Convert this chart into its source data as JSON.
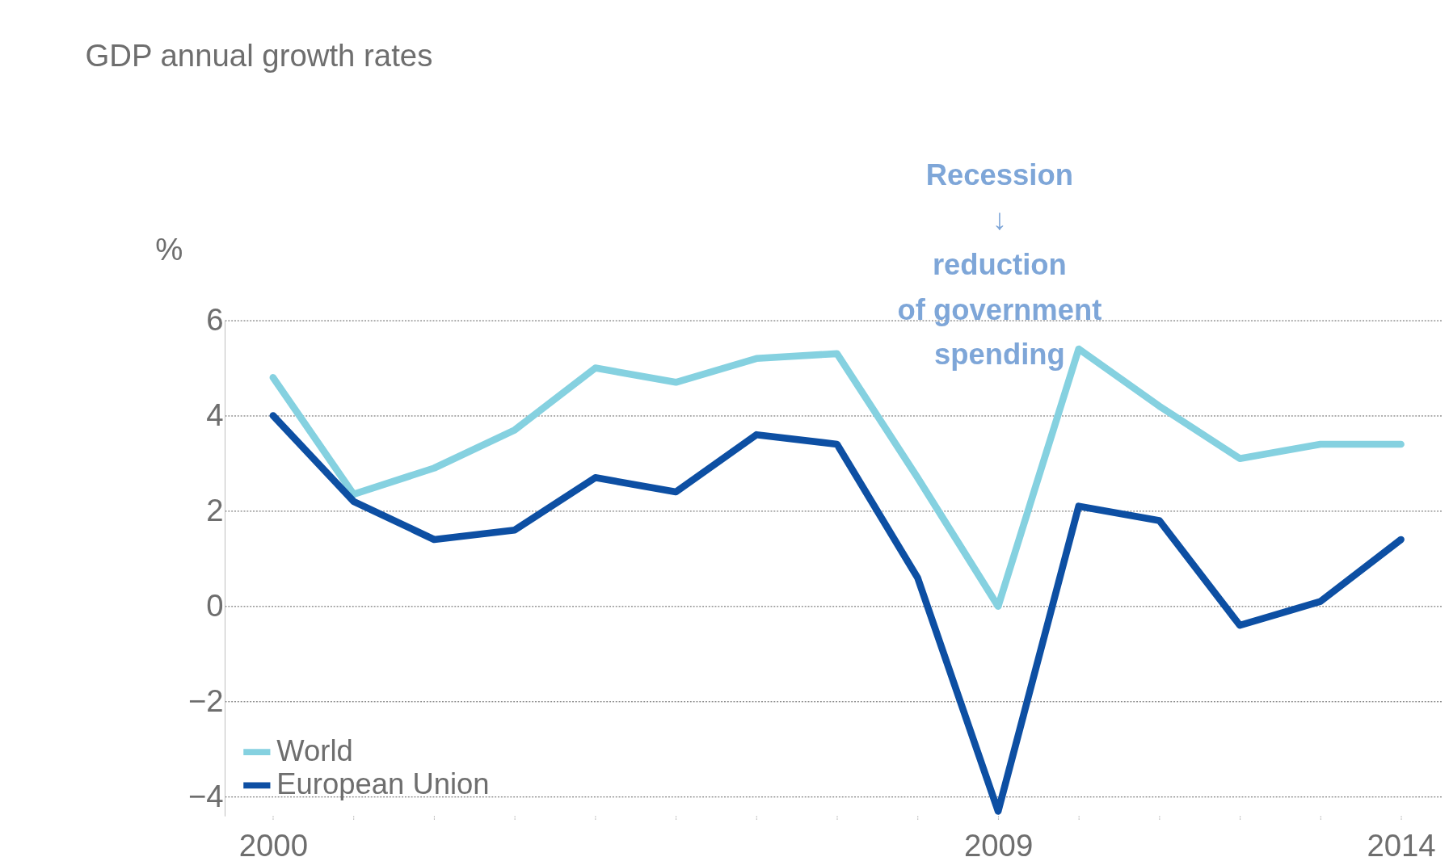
{
  "chart_data": {
    "type": "line",
    "title": "GDP annual growth rates",
    "ylabel": "%",
    "x": [
      2000,
      2001,
      2002,
      2003,
      2004,
      2005,
      2006,
      2007,
      2008,
      2009,
      2010,
      2011,
      2012,
      2013,
      2014
    ],
    "series": [
      {
        "name": "World",
        "color": "#85d1e0",
        "values": [
          4.8,
          2.35,
          2.9,
          3.7,
          5.0,
          4.7,
          5.2,
          5.3,
          2.7,
          0.0,
          5.4,
          4.2,
          3.1,
          3.4,
          3.4
        ]
      },
      {
        "name": "European Union",
        "color": "#0d4fa3",
        "values": [
          4.0,
          2.2,
          1.4,
          1.6,
          2.7,
          2.4,
          3.6,
          3.4,
          0.6,
          -4.3,
          2.1,
          1.8,
          -0.4,
          0.1,
          1.4
        ]
      }
    ],
    "xlim": [
      1999.4,
      2014.5
    ],
    "xticks": [
      2000,
      {
        "value": 2001,
        "label": null
      },
      {
        "value": 2002,
        "label": null
      },
      {
        "value": 2003,
        "label": null
      },
      {
        "value": 2004,
        "label": null
      },
      {
        "value": 2005,
        "label": null
      },
      {
        "value": 2006,
        "label": null
      },
      {
        "value": 2007,
        "label": null
      },
      {
        "value": 2008,
        "label": null
      },
      2009,
      {
        "value": 2010,
        "label": null
      },
      {
        "value": 2011,
        "label": null
      },
      {
        "value": 2012,
        "label": null
      },
      {
        "value": 2013,
        "label": null
      },
      2014
    ],
    "ylim": [
      -4.4,
      6
    ],
    "yticks": [
      {
        "value": -4,
        "label": "−4"
      },
      {
        "value": -2,
        "label": "−2"
      },
      0,
      2,
      4,
      6
    ],
    "grid": "y",
    "legend": "bottom left",
    "marker": "none",
    "line_style": "solid",
    "annotations": [
      "Recession\n↓\nreduction\nof government\nspending"
    ]
  }
}
